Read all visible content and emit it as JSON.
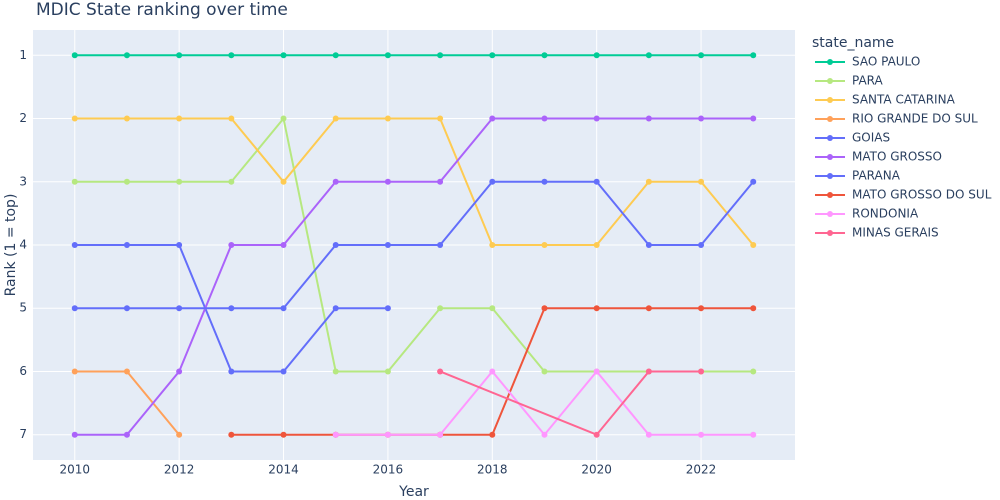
{
  "chart_data": {
    "type": "line",
    "title": "MDIC State ranking over time",
    "x_label": "Year",
    "y_label": "Rank (1 = top)",
    "legend_title": "state_name",
    "x": [
      2010,
      2011,
      2012,
      2013,
      2014,
      2015,
      2016,
      2017,
      2018,
      2019,
      2020,
      2021,
      2022,
      2023
    ],
    "xlim": [
      2009.2,
      2023.8
    ],
    "xticks": [
      2010,
      2012,
      2014,
      2016,
      2018,
      2020,
      2022
    ],
    "ylim": [
      7.4,
      0.6
    ],
    "yticks": [
      1,
      2,
      3,
      4,
      5,
      6,
      7
    ],
    "y_reversed": true,
    "grid": true,
    "legend": "right",
    "series": [
      {
        "name": "SAO PAULO",
        "color": "#00cc96",
        "values": [
          1,
          1,
          1,
          1,
          1,
          1,
          1,
          1,
          1,
          1,
          1,
          1,
          1,
          1
        ]
      },
      {
        "name": "PARA",
        "color": "#b6e880",
        "values": [
          3,
          3,
          3,
          3,
          2,
          6,
          6,
          5,
          5,
          6,
          6,
          6,
          6,
          6
        ]
      },
      {
        "name": "SANTA CATARINA",
        "color": "#fecb52",
        "values": [
          2,
          2,
          2,
          2,
          3,
          2,
          2,
          2,
          4,
          4,
          4,
          3,
          3,
          4
        ]
      },
      {
        "name": "RIO GRANDE DO SUL",
        "color": "#ffa15a",
        "values": [
          6,
          6,
          7,
          null,
          null,
          null,
          null,
          null,
          null,
          null,
          null,
          null,
          null,
          null
        ]
      },
      {
        "name": "GOIAS",
        "color": "#636efa",
        "values": [
          4,
          4,
          4,
          6,
          6,
          5,
          5,
          null,
          null,
          null,
          null,
          null,
          null,
          null
        ]
      },
      {
        "name": "MATO GROSSO",
        "color": "#ab63fa",
        "values": [
          7,
          7,
          6,
          4,
          4,
          3,
          3,
          3,
          2,
          2,
          2,
          2,
          2,
          2
        ]
      },
      {
        "name": "PARANA",
        "color": "#636efa",
        "values": [
          5,
          5,
          5,
          5,
          5,
          4,
          4,
          4,
          3,
          3,
          3,
          4,
          4,
          3
        ]
      },
      {
        "name": "MATO GROSSO DO SUL",
        "color": "#ef553b",
        "values": [
          null,
          null,
          null,
          7,
          7,
          7,
          7,
          7,
          7,
          5,
          5,
          5,
          5,
          5
        ]
      },
      {
        "name": "RONDONIA",
        "color": "#ff97ff",
        "values": [
          null,
          null,
          null,
          null,
          null,
          7,
          7,
          7,
          6,
          7,
          6,
          7,
          7,
          7
        ]
      },
      {
        "name": "MINAS GERAIS",
        "color": "#ff6692",
        "x": [
          2017,
          2020,
          2021,
          2022
        ],
        "values": [
          6,
          7,
          6,
          6
        ]
      }
    ]
  }
}
